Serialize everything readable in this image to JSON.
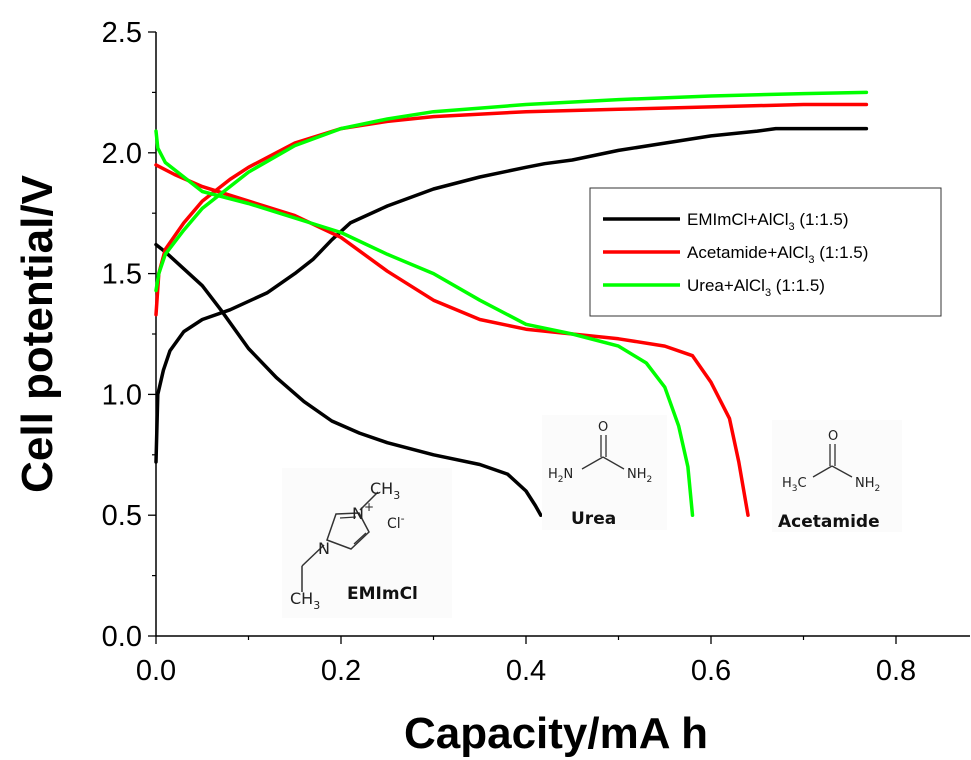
{
  "chart_data": {
    "type": "line",
    "xlabel": "Capacity/mA h",
    "ylabel": "Cell potential/V",
    "xlim": [
      0,
      0.88
    ],
    "ylim": [
      0,
      2.5
    ],
    "x_ticks": [
      "0.0",
      "0.2",
      "0.4",
      "0.6",
      "0.8"
    ],
    "y_ticks": [
      "0.0",
      "0.5",
      "1.0",
      "1.5",
      "2.0",
      "2.5"
    ],
    "grid": false,
    "legend_position": "right-middle",
    "series": [
      {
        "name": "EMImCl+AlCl3 (1:1.5)",
        "legend_main": "EMImCl+AlCl",
        "legend_sub": "3",
        "legend_suffix": " (1:1.5)",
        "color": "#000000",
        "charge": [
          [
            0.0,
            0.72
          ],
          [
            0.002,
            1.0
          ],
          [
            0.008,
            1.1
          ],
          [
            0.015,
            1.18
          ],
          [
            0.03,
            1.26
          ],
          [
            0.05,
            1.31
          ],
          [
            0.08,
            1.35
          ],
          [
            0.12,
            1.42
          ],
          [
            0.15,
            1.5
          ],
          [
            0.17,
            1.56
          ],
          [
            0.19,
            1.64
          ],
          [
            0.21,
            1.71
          ],
          [
            0.25,
            1.78
          ],
          [
            0.3,
            1.85
          ],
          [
            0.35,
            1.9
          ],
          [
            0.4,
            1.94
          ],
          [
            0.42,
            1.955
          ],
          [
            0.45,
            1.97
          ],
          [
            0.5,
            2.01
          ],
          [
            0.55,
            2.04
          ],
          [
            0.6,
            2.07
          ],
          [
            0.65,
            2.09
          ],
          [
            0.67,
            2.1
          ],
          [
            0.7,
            2.1
          ],
          [
            0.768,
            2.1
          ]
        ],
        "discharge": [
          [
            0.0,
            1.62
          ],
          [
            0.01,
            1.59
          ],
          [
            0.03,
            1.52
          ],
          [
            0.05,
            1.45
          ],
          [
            0.07,
            1.35
          ],
          [
            0.1,
            1.19
          ],
          [
            0.13,
            1.07
          ],
          [
            0.16,
            0.97
          ],
          [
            0.19,
            0.89
          ],
          [
            0.22,
            0.84
          ],
          [
            0.25,
            0.8
          ],
          [
            0.3,
            0.75
          ],
          [
            0.35,
            0.71
          ],
          [
            0.38,
            0.67
          ],
          [
            0.4,
            0.6
          ],
          [
            0.41,
            0.54
          ],
          [
            0.416,
            0.5
          ]
        ]
      },
      {
        "name": "Acetamide+AlCl3 (1:1.5)",
        "legend_main": "Acetamide+AlCl",
        "legend_sub": "3",
        "legend_suffix": " (1:1.5)",
        "color": "#ff0000",
        "charge": [
          [
            0.0,
            1.33
          ],
          [
            0.003,
            1.5
          ],
          [
            0.01,
            1.6
          ],
          [
            0.03,
            1.71
          ],
          [
            0.05,
            1.8
          ],
          [
            0.08,
            1.89
          ],
          [
            0.1,
            1.94
          ],
          [
            0.15,
            2.04
          ],
          [
            0.2,
            2.1
          ],
          [
            0.25,
            2.13
          ],
          [
            0.3,
            2.15
          ],
          [
            0.4,
            2.17
          ],
          [
            0.5,
            2.18
          ],
          [
            0.6,
            2.19
          ],
          [
            0.7,
            2.2
          ],
          [
            0.768,
            2.2
          ]
        ],
        "discharge": [
          [
            0.0,
            1.95
          ],
          [
            0.02,
            1.91
          ],
          [
            0.05,
            1.86
          ],
          [
            0.1,
            1.8
          ],
          [
            0.15,
            1.74
          ],
          [
            0.2,
            1.65
          ],
          [
            0.25,
            1.51
          ],
          [
            0.3,
            1.39
          ],
          [
            0.35,
            1.31
          ],
          [
            0.4,
            1.27
          ],
          [
            0.45,
            1.25
          ],
          [
            0.5,
            1.23
          ],
          [
            0.55,
            1.2
          ],
          [
            0.58,
            1.16
          ],
          [
            0.6,
            1.05
          ],
          [
            0.62,
            0.9
          ],
          [
            0.63,
            0.72
          ],
          [
            0.64,
            0.5
          ]
        ]
      },
      {
        "name": "Urea+AlCl3 (1:1.5)",
        "legend_main": "Urea+AlCl",
        "legend_sub": "3",
        "legend_suffix": " (1:1.5)",
        "color": "#00ff00",
        "charge": [
          [
            0.0,
            1.43
          ],
          [
            0.003,
            1.5
          ],
          [
            0.01,
            1.58
          ],
          [
            0.03,
            1.68
          ],
          [
            0.05,
            1.77
          ],
          [
            0.08,
            1.86
          ],
          [
            0.1,
            1.92
          ],
          [
            0.15,
            2.03
          ],
          [
            0.2,
            2.1
          ],
          [
            0.25,
            2.14
          ],
          [
            0.3,
            2.17
          ],
          [
            0.4,
            2.2
          ],
          [
            0.5,
            2.22
          ],
          [
            0.6,
            2.235
          ],
          [
            0.7,
            2.245
          ],
          [
            0.768,
            2.25
          ]
        ],
        "discharge": [
          [
            0.0,
            2.09
          ],
          [
            0.002,
            2.02
          ],
          [
            0.01,
            1.96
          ],
          [
            0.03,
            1.9
          ],
          [
            0.05,
            1.84
          ],
          [
            0.1,
            1.79
          ],
          [
            0.15,
            1.73
          ],
          [
            0.2,
            1.67
          ],
          [
            0.25,
            1.58
          ],
          [
            0.3,
            1.5
          ],
          [
            0.35,
            1.39
          ],
          [
            0.4,
            1.29
          ],
          [
            0.45,
            1.25
          ],
          [
            0.5,
            1.2
          ],
          [
            0.53,
            1.13
          ],
          [
            0.55,
            1.03
          ],
          [
            0.565,
            0.87
          ],
          [
            0.575,
            0.7
          ],
          [
            0.58,
            0.5
          ]
        ]
      }
    ]
  },
  "annotations": {
    "emim": {
      "label": "EMImCl",
      "ch3_top": "CH",
      "ch3_bottom": "CH",
      "sub3": "3",
      "plus": "+",
      "n_label": "N",
      "cl": "Cl",
      "minus": "-"
    },
    "urea": {
      "label": "Urea",
      "o": "O",
      "h2n": "H",
      "h2n_sub": "2",
      "h2n_n": "N",
      "nh2": "NH",
      "nh2_sub": "2"
    },
    "acetamide": {
      "label": "Acetamide",
      "o": "O",
      "h3c": "H",
      "h3c_sub": "3",
      "h3c_c": "C",
      "nh2": "NH",
      "nh2_sub": "2"
    }
  }
}
